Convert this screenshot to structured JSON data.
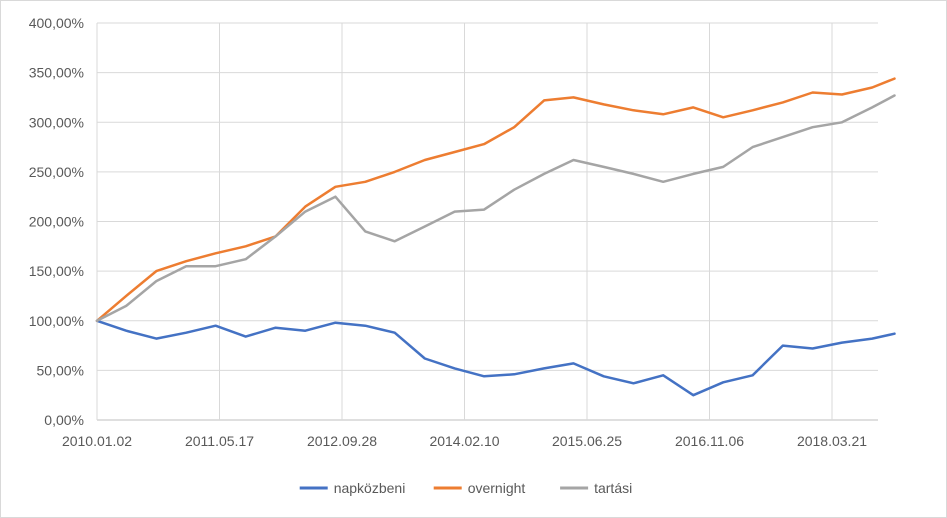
{
  "chart_data": {
    "type": "line",
    "title": "",
    "xlabel": "",
    "ylabel": "",
    "ylim": [
      0,
      400
    ],
    "y_ticks": [
      {
        "value": 0,
        "label": "0,00%"
      },
      {
        "value": 50,
        "label": "50,00%"
      },
      {
        "value": 100,
        "label": "100,00%"
      },
      {
        "value": 150,
        "label": "150,00%"
      },
      {
        "value": 200,
        "label": "200,00%"
      },
      {
        "value": 250,
        "label": "250,00%"
      },
      {
        "value": 300,
        "label": "300,00%"
      },
      {
        "value": 350,
        "label": "350,00%"
      },
      {
        "value": 400,
        "label": "400,00%"
      }
    ],
    "x_ticks": [
      "2010.01.02",
      "2011.05.17",
      "2012.09.28",
      "2014.02.10",
      "2015.06.25",
      "2016.11.06",
      "2018.03.21"
    ],
    "x": [
      "2010.01.02",
      "2010.05.01",
      "2010.09.01",
      "2011.01.01",
      "2011.05.01",
      "2011.09.01",
      "2012.01.01",
      "2012.05.01",
      "2012.09.01",
      "2013.01.01",
      "2013.05.01",
      "2013.09.01",
      "2014.01.01",
      "2014.05.01",
      "2014.09.01",
      "2015.01.01",
      "2015.05.01",
      "2015.09.01",
      "2016.01.01",
      "2016.05.01",
      "2016.09.01",
      "2017.01.01",
      "2017.05.01",
      "2017.09.01",
      "2018.01.01",
      "2018.05.01",
      "2018.09.01",
      "2018.12.01"
    ],
    "grid": true,
    "legend_position": "bottom",
    "series": [
      {
        "name": "napközbeni",
        "color": "#4472c4",
        "values": [
          100,
          90,
          82,
          88,
          95,
          84,
          93,
          90,
          98,
          95,
          88,
          62,
          52,
          44,
          46,
          52,
          57,
          44,
          37,
          45,
          25,
          38,
          45,
          75,
          72,
          78,
          82,
          87
        ]
      },
      {
        "name": "overnight",
        "color": "#ed7d31",
        "values": [
          100,
          125,
          150,
          160,
          168,
          175,
          185,
          215,
          235,
          240,
          250,
          262,
          270,
          278,
          295,
          322,
          325,
          318,
          312,
          308,
          315,
          305,
          312,
          320,
          330,
          328,
          335,
          344
        ]
      },
      {
        "name": "tartási",
        "color": "#a5a5a5",
        "values": [
          100,
          115,
          140,
          155,
          155,
          162,
          185,
          210,
          225,
          190,
          180,
          195,
          210,
          212,
          232,
          248,
          262,
          255,
          248,
          240,
          248,
          255,
          275,
          285,
          295,
          300,
          315,
          327
        ]
      }
    ]
  }
}
